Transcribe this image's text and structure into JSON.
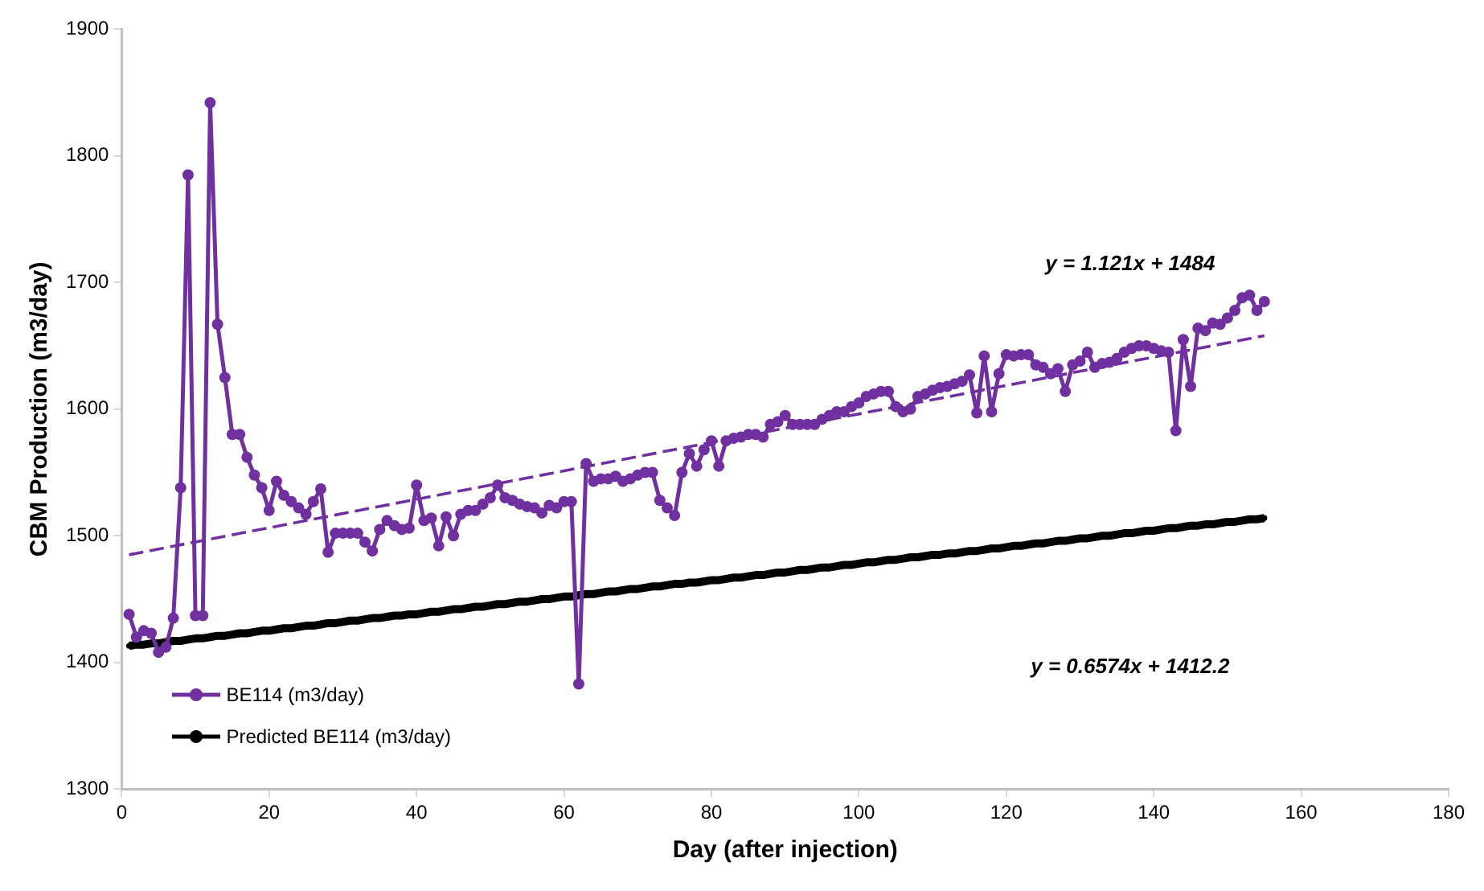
{
  "chart_data": {
    "type": "line",
    "xlabel": "Day (after injection)",
    "ylabel": "CBM Production (m3/day)",
    "xlim": [
      0,
      180
    ],
    "xticks": [
      0,
      20,
      40,
      60,
      80,
      100,
      120,
      140,
      160,
      180
    ],
    "ylim": [
      1300,
      1900
    ],
    "yticks": [
      1300,
      1400,
      1500,
      1600,
      1700,
      1800,
      1900
    ],
    "grid": false,
    "legend": "bottom left",
    "marker": "circle",
    "x": [
      1,
      2,
      3,
      4,
      5,
      6,
      7,
      8,
      9,
      10,
      11,
      12,
      13,
      14,
      15,
      16,
      17,
      18,
      19,
      20,
      21,
      22,
      23,
      24,
      25,
      26,
      27,
      28,
      29,
      30,
      31,
      32,
      33,
      34,
      35,
      36,
      37,
      38,
      39,
      40,
      41,
      42,
      43,
      44,
      45,
      46,
      47,
      48,
      49,
      50,
      51,
      52,
      53,
      54,
      55,
      56,
      57,
      58,
      59,
      60,
      61,
      62,
      63,
      64,
      65,
      66,
      67,
      68,
      69,
      70,
      71,
      72,
      73,
      74,
      75,
      76,
      77,
      78,
      79,
      80,
      81,
      82,
      83,
      84,
      85,
      86,
      87,
      88,
      89,
      90,
      91,
      92,
      93,
      94,
      95,
      96,
      97,
      98,
      99,
      100,
      101,
      102,
      103,
      104,
      105,
      106,
      107,
      108,
      109,
      110,
      111,
      112,
      113,
      114,
      115,
      116,
      117,
      118,
      119,
      120,
      121,
      122,
      123,
      124,
      125,
      126,
      127,
      128,
      129,
      130,
      131,
      132,
      133,
      134,
      135,
      136,
      137,
      138,
      139,
      140,
      141,
      142,
      143,
      144,
      145,
      146,
      147,
      148,
      149,
      150,
      151,
      152,
      153,
      154,
      155
    ],
    "series": [
      {
        "name": "BE114 (m3/day)",
        "color": "#7030a0",
        "values": [
          1438,
          1420,
          1425,
          1423,
          1408,
          1412,
          1435,
          1538,
          1785,
          1437,
          1437,
          1842,
          1667,
          1625,
          1580,
          1580,
          1562,
          1548,
          1538,
          1520,
          1543,
          1532,
          1527,
          1522,
          1517,
          1527,
          1537,
          1487,
          1502,
          1502,
          1502,
          1502,
          1495,
          1488,
          1505,
          1512,
          1508,
          1505,
          1506,
          1540,
          1512,
          1514,
          1492,
          1515,
          1500,
          1517,
          1520,
          1520,
          1525,
          1530,
          1540,
          1530,
          1528,
          1525,
          1523,
          1522,
          1518,
          1524,
          1522,
          1527,
          1527,
          1383,
          1557,
          1543,
          1545,
          1545,
          1547,
          1543,
          1545,
          1548,
          1550,
          1550,
          1528,
          1522,
          1516,
          1550,
          1565,
          1555,
          1568,
          1575,
          1555,
          1575,
          1577,
          1578,
          1580,
          1580,
          1578,
          1588,
          1590,
          1595,
          1588,
          1588,
          1588,
          1588,
          1592,
          1595,
          1598,
          1598,
          1602,
          1605,
          1610,
          1612,
          1614,
          1614,
          1602,
          1598,
          1600,
          1610,
          1612,
          1615,
          1617,
          1618,
          1620,
          1622,
          1627,
          1597,
          1642,
          1598,
          1628,
          1643,
          1642,
          1643,
          1643,
          1635,
          1633,
          1628,
          1632,
          1614,
          1635,
          1638,
          1645,
          1633,
          1636,
          1637,
          1640,
          1645,
          1648,
          1650,
          1650,
          1648,
          1646,
          1645,
          1583,
          1655,
          1618,
          1664,
          1662,
          1668,
          1667,
          1672,
          1678,
          1688,
          1690,
          1678,
          1685
        ]
      },
      {
        "name": "Predicted BE114 (m3/day)",
        "color": "#000000",
        "values": [
          1413,
          1414,
          1414,
          1415,
          1415,
          1416,
          1417,
          1417,
          1418,
          1419,
          1419,
          1420,
          1421,
          1421,
          1422,
          1423,
          1423,
          1424,
          1425,
          1425,
          1426,
          1427,
          1427,
          1428,
          1429,
          1429,
          1430,
          1431,
          1431,
          1432,
          1433,
          1433,
          1434,
          1435,
          1435,
          1436,
          1437,
          1437,
          1438,
          1438,
          1439,
          1440,
          1440,
          1441,
          1442,
          1442,
          1443,
          1444,
          1444,
          1445,
          1446,
          1446,
          1447,
          1448,
          1448,
          1449,
          1450,
          1450,
          1451,
          1452,
          1452,
          1453,
          1454,
          1454,
          1455,
          1456,
          1456,
          1457,
          1458,
          1458,
          1459,
          1460,
          1460,
          1461,
          1462,
          1462,
          1463,
          1463,
          1464,
          1465,
          1465,
          1466,
          1467,
          1467,
          1468,
          1469,
          1469,
          1470,
          1471,
          1471,
          1472,
          1473,
          1473,
          1474,
          1475,
          1475,
          1476,
          1477,
          1477,
          1478,
          1479,
          1479,
          1480,
          1481,
          1481,
          1482,
          1483,
          1483,
          1484,
          1485,
          1485,
          1486,
          1486,
          1487,
          1488,
          1488,
          1489,
          1490,
          1490,
          1491,
          1492,
          1492,
          1493,
          1494,
          1494,
          1495,
          1496,
          1496,
          1497,
          1498,
          1498,
          1499,
          1500,
          1500,
          1501,
          1502,
          1502,
          1503,
          1504,
          1504,
          1505,
          1506,
          1506,
          1507,
          1508,
          1508,
          1509,
          1509,
          1510,
          1511,
          1511,
          1512,
          1513,
          1513,
          1514
        ]
      },
      {
        "type": "line",
        "color": "#7030a0",
        "marker": "none",
        "line_style": "dashed",
        "x": [
          1,
          155
        ],
        "values": [
          1485,
          1658
        ]
      }
    ],
    "annotations": [
      "y = 1.121x + 1484",
      "y = 0.6574x + 1412.2"
    ]
  }
}
